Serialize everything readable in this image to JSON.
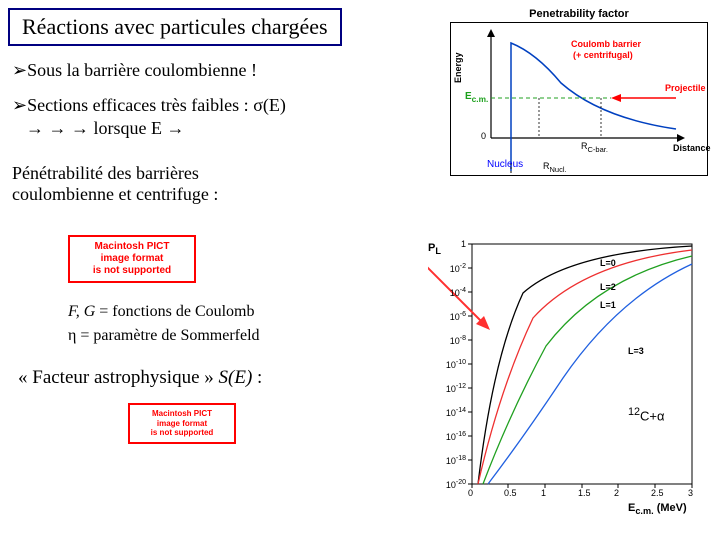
{
  "title": "Réactions avec particules chargées",
  "bullets": {
    "b1": "Sous la barrière coulombienne !",
    "b2_pre": "Sections efficaces très faibles : ",
    "b2_sigma": "σ(E)",
    "arrows": "→ → →  lorsque E →"
  },
  "penetrability_para": {
    "l1": "Pénétrabilité des barrières",
    "l2": "coulombienne et centrifuge :"
  },
  "coulomb_fn": {
    "pre": "F, G",
    "rest": " = fonctions de Coulomb"
  },
  "sommerfeld": "η = paramètre de Sommerfeld",
  "astro": {
    "pre": "« Facteur astrophysique » ",
    "se": "S(E)",
    "post": " :"
  },
  "pict": {
    "l1": "Macintosh PICT",
    "l2": "image format",
    "l3": "is not supported"
  },
  "top_chart": {
    "title": "Penetrability factor",
    "ylabel": "Energy",
    "xlabel": "Distance",
    "e_cm": "E",
    "e_cm_sub": "c.m.",
    "zero": "0",
    "coulomb": "Coulomb barrier",
    "centrifugal": "(+ centrifugal)",
    "projectile": "Projectile",
    "r_cou": "R",
    "r_cou_sub": "C-bar.",
    "nucleus": "Nucleus",
    "r_nuc": "R",
    "r_nuc_sub": "Nucl."
  },
  "log_chart": {
    "ylabel": "P",
    "ylabel_sub": "L",
    "xlabel": "E",
    "xlabel_sub": "c.m.",
    "xlabel_unit": " (MeV)",
    "yticks_top": "1",
    "yticks": [
      "10",
      "10",
      "10",
      "10",
      "10",
      "10",
      "10",
      "10",
      "10",
      "10"
    ],
    "ytick_exp": [
      "-2",
      "-4",
      "-6",
      "-8",
      "-10",
      "-12",
      "-14",
      "-16",
      "-18",
      "-20"
    ],
    "xticks": [
      "0",
      "0.5",
      "1",
      "1.5",
      "2",
      "2.5",
      "3"
    ],
    "curves": {
      "l0": "L=0",
      "l1": "L=1",
      "l2": "L=2",
      "l3": "L=3"
    },
    "reaction": {
      "pre": "12",
      "c": "C+α"
    },
    "colors": {
      "bg": "#ffffff",
      "axis": "#000000",
      "l0": "#000000",
      "l1": "#ee3030",
      "l2": "#20a020",
      "l3": "#2060e0",
      "arrow": "#ff3030"
    }
  }
}
